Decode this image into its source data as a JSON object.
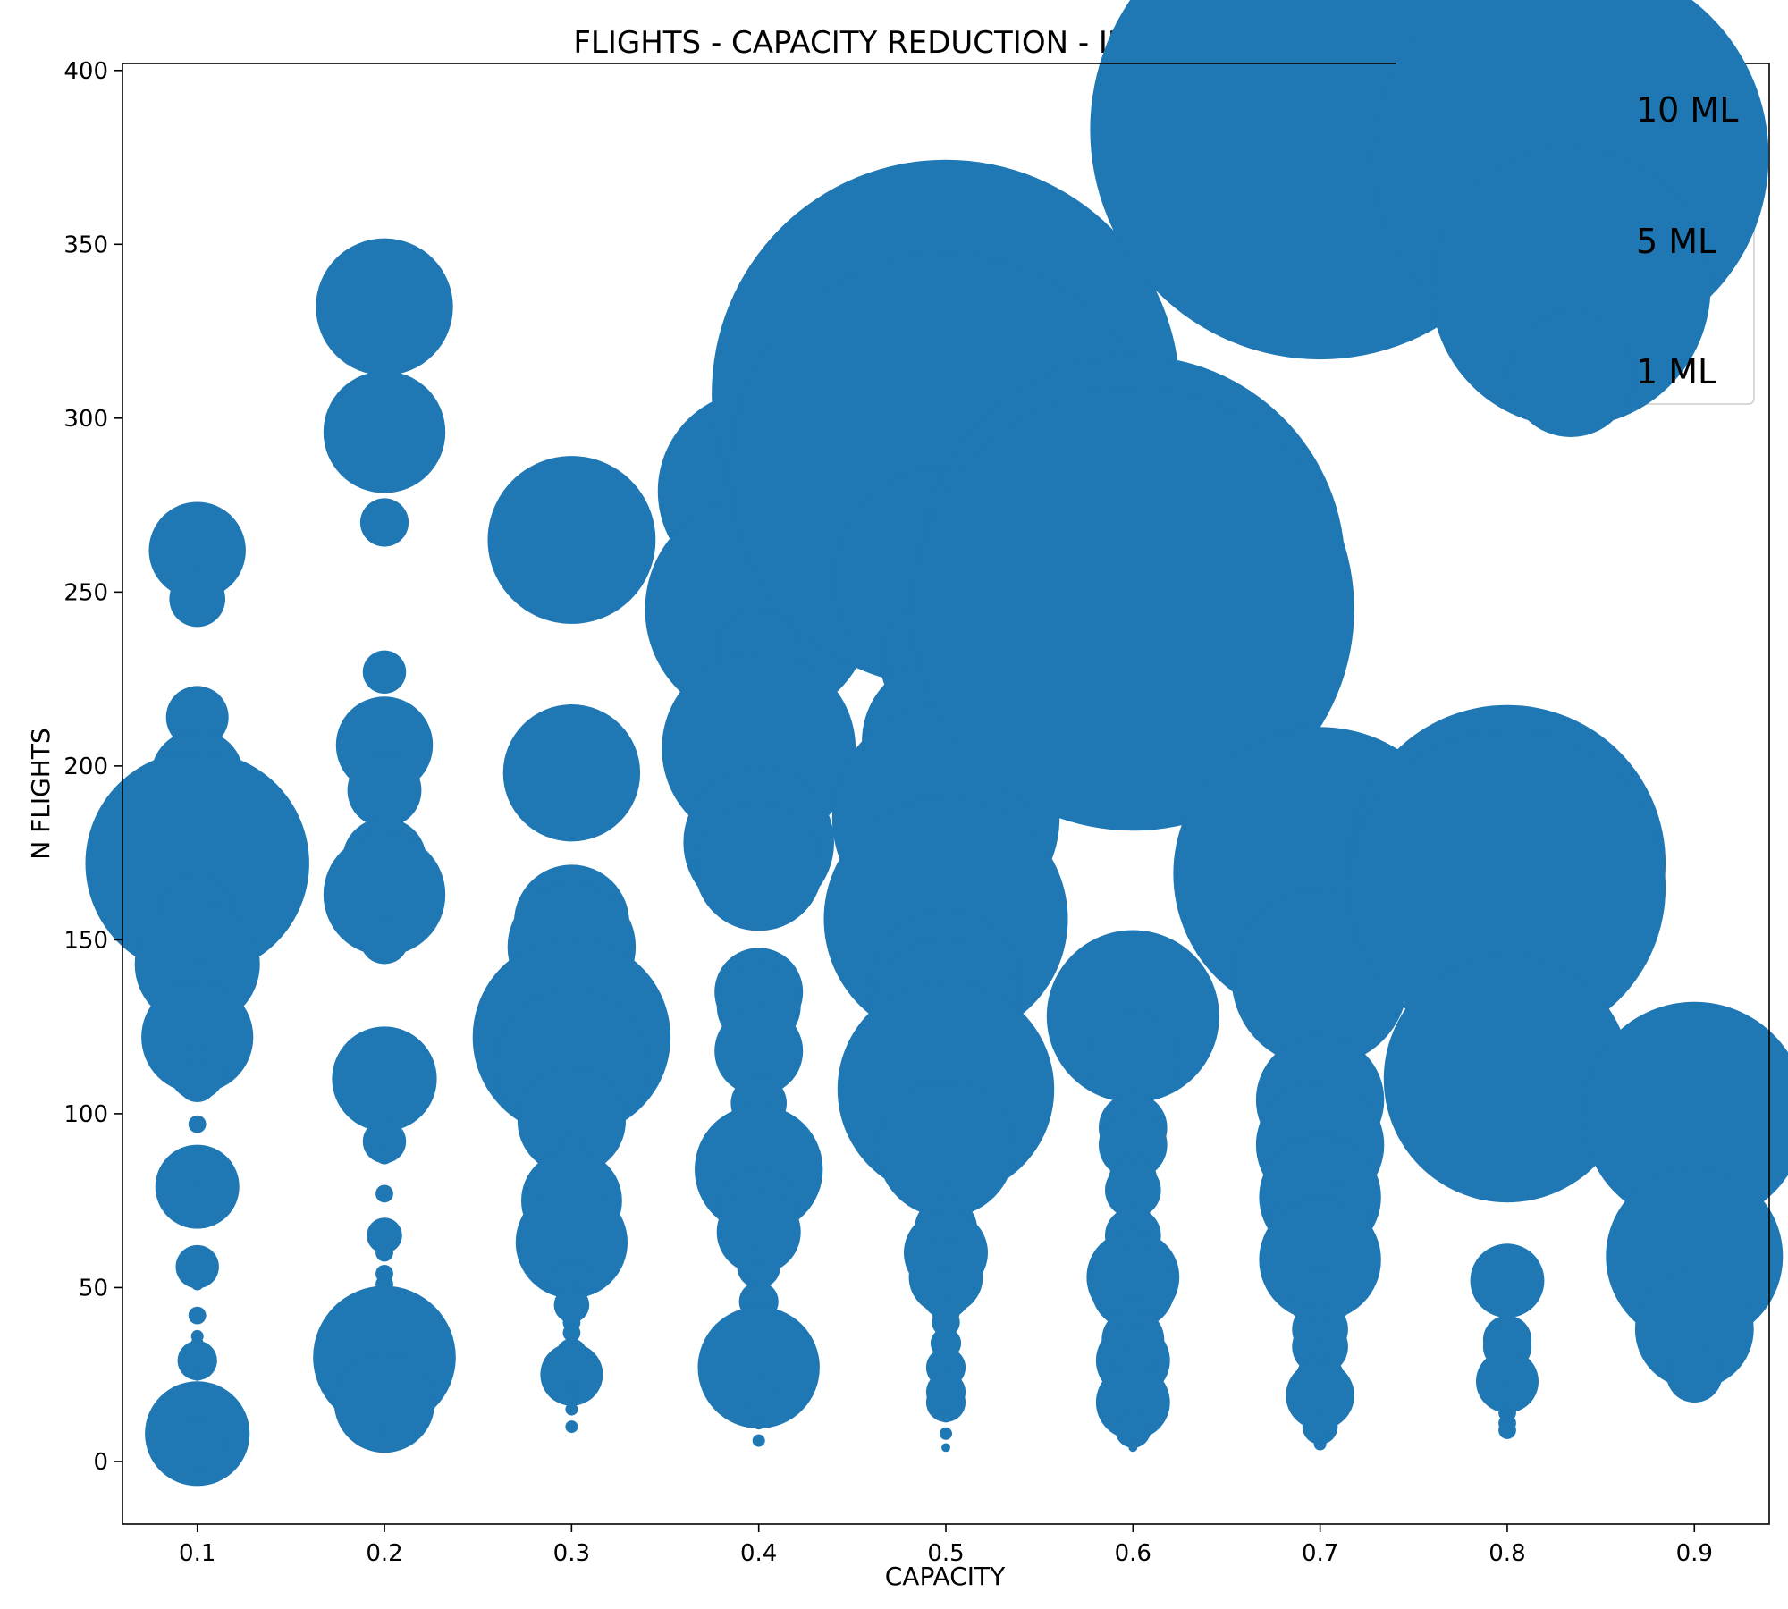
{
  "chart_data": {
    "type": "scatter",
    "title": "FLIGHTS - CAPACITY REDUCTION - INITIAL COSTS",
    "xlabel": "CAPACITY",
    "ylabel": "N FLIGHTS",
    "xlim": [
      0.06,
      0.94
    ],
    "ylim": [
      -18,
      402
    ],
    "xticks": [
      "0.1",
      "0.2",
      "0.3",
      "0.4",
      "0.5",
      "0.6",
      "0.7",
      "0.8",
      "0.9"
    ],
    "yticks": [
      "0",
      "50",
      "100",
      "150",
      "200",
      "250",
      "300",
      "350",
      "400"
    ],
    "size_unit": "ML",
    "color": "#1f77b4",
    "grid": false,
    "legend": {
      "position": "top-right",
      "entries": [
        {
          "label": "10 ML",
          "size": 10
        },
        {
          "label": "5 ML",
          "size": 5
        },
        {
          "label": "1 ML",
          "size": 1
        }
      ]
    },
    "points": [
      {
        "x": 0.1,
        "y": 262,
        "size": 0.6
      },
      {
        "x": 0.1,
        "y": 248,
        "size": 0.2
      },
      {
        "x": 0.1,
        "y": 214,
        "size": 0.25
      },
      {
        "x": 0.1,
        "y": 202,
        "size": 0.15
      },
      {
        "x": 0.1,
        "y": 197,
        "size": 0.55
      },
      {
        "x": 0.1,
        "y": 193,
        "size": 0.15
      },
      {
        "x": 0.1,
        "y": 189,
        "size": 0.2
      },
      {
        "x": 0.1,
        "y": 172,
        "size": 3.2
      },
      {
        "x": 0.1,
        "y": 158,
        "size": 0.35
      },
      {
        "x": 0.1,
        "y": 143,
        "size": 1.0
      },
      {
        "x": 0.1,
        "y": 138,
        "size": 0.1
      },
      {
        "x": 0.1,
        "y": 129,
        "size": 0.15
      },
      {
        "x": 0.1,
        "y": 122,
        "size": 0.8
      },
      {
        "x": 0.1,
        "y": 112,
        "size": 0.2
      },
      {
        "x": 0.1,
        "y": 109,
        "size": 0.1
      },
      {
        "x": 0.1,
        "y": 97,
        "size": 0.02
      },
      {
        "x": 0.1,
        "y": 87,
        "size": 0.02
      },
      {
        "x": 0.1,
        "y": 83,
        "size": 0.03
      },
      {
        "x": 0.1,
        "y": 79,
        "size": 0.45
      },
      {
        "x": 0.1,
        "y": 75,
        "size": 0.1
      },
      {
        "x": 0.1,
        "y": 59,
        "size": 0.02
      },
      {
        "x": 0.1,
        "y": 56,
        "size": 0.12
      },
      {
        "x": 0.1,
        "y": 51,
        "size": 0.01
      },
      {
        "x": 0.1,
        "y": 42,
        "size": 0.02
      },
      {
        "x": 0.1,
        "y": 36,
        "size": 0.01
      },
      {
        "x": 0.1,
        "y": 34,
        "size": 0.01
      },
      {
        "x": 0.1,
        "y": 29,
        "size": 0.1
      },
      {
        "x": 0.1,
        "y": 25,
        "size": 0.01
      },
      {
        "x": 0.1,
        "y": 18,
        "size": 0.01
      },
      {
        "x": 0.1,
        "y": 13,
        "size": 0.08
      },
      {
        "x": 0.1,
        "y": 8,
        "size": 0.7
      },
      {
        "x": 0.1,
        "y": 5,
        "size": 0.2
      },
      {
        "x": 0.2,
        "y": 332,
        "size": 1.2
      },
      {
        "x": 0.2,
        "y": 296,
        "size": 0.95
      },
      {
        "x": 0.2,
        "y": 270,
        "size": 0.15
      },
      {
        "x": 0.2,
        "y": 227,
        "size": 0.12
      },
      {
        "x": 0.2,
        "y": 206,
        "size": 0.6
      },
      {
        "x": 0.2,
        "y": 193,
        "size": 0.35
      },
      {
        "x": 0.2,
        "y": 173,
        "size": 0.45
      },
      {
        "x": 0.2,
        "y": 163,
        "size": 0.95
      },
      {
        "x": 0.2,
        "y": 150,
        "size": 0.15
      },
      {
        "x": 0.2,
        "y": 110,
        "size": 0.7
      },
      {
        "x": 0.2,
        "y": 104,
        "size": 0.02
      },
      {
        "x": 0.2,
        "y": 92,
        "size": 0.12
      },
      {
        "x": 0.2,
        "y": 88,
        "size": 0.02
      },
      {
        "x": 0.2,
        "y": 77,
        "size": 0.02
      },
      {
        "x": 0.2,
        "y": 67,
        "size": 0.02
      },
      {
        "x": 0.2,
        "y": 65,
        "size": 0.08
      },
      {
        "x": 0.2,
        "y": 60,
        "size": 0.02
      },
      {
        "x": 0.2,
        "y": 54,
        "size": 0.02
      },
      {
        "x": 0.2,
        "y": 51,
        "size": 0.02
      },
      {
        "x": 0.2,
        "y": 42,
        "size": 0.08
      },
      {
        "x": 0.2,
        "y": 30,
        "size": 1.3
      },
      {
        "x": 0.2,
        "y": 17,
        "size": 0.65
      },
      {
        "x": 0.2,
        "y": 9,
        "size": 0.005
      },
      {
        "x": 0.3,
        "y": 265,
        "size": 1.8
      },
      {
        "x": 0.3,
        "y": 198,
        "size": 1.2
      },
      {
        "x": 0.3,
        "y": 155,
        "size": 0.85
      },
      {
        "x": 0.3,
        "y": 148,
        "size": 1.05
      },
      {
        "x": 0.3,
        "y": 131,
        "size": 0.5
      },
      {
        "x": 0.3,
        "y": 122,
        "size": 2.5
      },
      {
        "x": 0.3,
        "y": 114,
        "size": 1.5
      },
      {
        "x": 0.3,
        "y": 98,
        "size": 0.75
      },
      {
        "x": 0.3,
        "y": 91,
        "size": 0.03
      },
      {
        "x": 0.3,
        "y": 83,
        "size": 0.06
      },
      {
        "x": 0.3,
        "y": 75,
        "size": 0.65
      },
      {
        "x": 0.3,
        "y": 63,
        "size": 0.8
      },
      {
        "x": 0.3,
        "y": 52,
        "size": 0.12
      },
      {
        "x": 0.3,
        "y": 47,
        "size": 0.06
      },
      {
        "x": 0.3,
        "y": 45,
        "size": 0.08
      },
      {
        "x": 0.3,
        "y": 40,
        "size": 0.02
      },
      {
        "x": 0.3,
        "y": 37,
        "size": 0.02
      },
      {
        "x": 0.3,
        "y": 31,
        "size": 0.06
      },
      {
        "x": 0.3,
        "y": 29,
        "size": 0.04
      },
      {
        "x": 0.3,
        "y": 25,
        "size": 0.25
      },
      {
        "x": 0.3,
        "y": 21,
        "size": 0.01
      },
      {
        "x": 0.3,
        "y": 18,
        "size": 0.01
      },
      {
        "x": 0.3,
        "y": 15,
        "size": 0.01
      },
      {
        "x": 0.3,
        "y": 10,
        "size": 0.01
      },
      {
        "x": 0.4,
        "y": 279,
        "size": 2.6
      },
      {
        "x": 0.4,
        "y": 270,
        "size": 0.5
      },
      {
        "x": 0.4,
        "y": 255,
        "size": 0.5
      },
      {
        "x": 0.4,
        "y": 245,
        "size": 3.3
      },
      {
        "x": 0.4,
        "y": 233,
        "size": 0.45
      },
      {
        "x": 0.4,
        "y": 205,
        "size": 2.4
      },
      {
        "x": 0.4,
        "y": 178,
        "size": 1.45
      },
      {
        "x": 0.4,
        "y": 171,
        "size": 1.05
      },
      {
        "x": 0.4,
        "y": 135,
        "size": 0.5
      },
      {
        "x": 0.4,
        "y": 131,
        "size": 0.45
      },
      {
        "x": 0.4,
        "y": 118,
        "size": 0.5
      },
      {
        "x": 0.4,
        "y": 103,
        "size": 0.2
      },
      {
        "x": 0.4,
        "y": 84,
        "size": 1.05
      },
      {
        "x": 0.4,
        "y": 73,
        "size": 0.4
      },
      {
        "x": 0.4,
        "y": 66,
        "size": 0.45
      },
      {
        "x": 0.4,
        "y": 56,
        "size": 0.12
      },
      {
        "x": 0.4,
        "y": 53,
        "size": 0.05
      },
      {
        "x": 0.4,
        "y": 46,
        "size": 0.1
      },
      {
        "x": 0.4,
        "y": 43,
        "size": 0.04
      },
      {
        "x": 0.4,
        "y": 37,
        "size": 0.2
      },
      {
        "x": 0.4,
        "y": 33,
        "size": 0.04
      },
      {
        "x": 0.4,
        "y": 27,
        "size": 0.95
      },
      {
        "x": 0.4,
        "y": 20,
        "size": 0.08
      },
      {
        "x": 0.4,
        "y": 16,
        "size": 0.02
      },
      {
        "x": 0.4,
        "y": 11,
        "size": 0.01
      },
      {
        "x": 0.4,
        "y": 6,
        "size": 0.01
      },
      {
        "x": 0.5,
        "y": 307,
        "size": 14.0
      },
      {
        "x": 0.5,
        "y": 285,
        "size": 12.0
      },
      {
        "x": 0.5,
        "y": 254,
        "size": 3.2
      },
      {
        "x": 0.5,
        "y": 230,
        "size": 1.1
      },
      {
        "x": 0.5,
        "y": 221,
        "size": 0.9
      },
      {
        "x": 0.5,
        "y": 207,
        "size": 1.8
      },
      {
        "x": 0.5,
        "y": 185,
        "size": 3.3
      },
      {
        "x": 0.5,
        "y": 156,
        "size": 3.8
      },
      {
        "x": 0.5,
        "y": 137,
        "size": 1.45
      },
      {
        "x": 0.5,
        "y": 129,
        "size": 1.45
      },
      {
        "x": 0.5,
        "y": 107,
        "size": 3.0
      },
      {
        "x": 0.5,
        "y": 90,
        "size": 1.2
      },
      {
        "x": 0.5,
        "y": 82,
        "size": 0.08
      },
      {
        "x": 0.5,
        "y": 73,
        "size": 0.12
      },
      {
        "x": 0.5,
        "y": 67,
        "size": 0.25
      },
      {
        "x": 0.5,
        "y": 60,
        "size": 0.45
      },
      {
        "x": 0.5,
        "y": 53,
        "size": 0.35
      },
      {
        "x": 0.5,
        "y": 48,
        "size": 0.15
      },
      {
        "x": 0.5,
        "y": 43,
        "size": 0.05
      },
      {
        "x": 0.5,
        "y": 40,
        "size": 0.05
      },
      {
        "x": 0.5,
        "y": 34,
        "size": 0.06
      },
      {
        "x": 0.5,
        "y": 27,
        "size": 0.1
      },
      {
        "x": 0.5,
        "y": 20,
        "size": 0.1
      },
      {
        "x": 0.5,
        "y": 17,
        "size": 0.1
      },
      {
        "x": 0.5,
        "y": 13,
        "size": 0.01
      },
      {
        "x": 0.5,
        "y": 8,
        "size": 0.01
      },
      {
        "x": 0.5,
        "y": 4,
        "size": 0.005
      },
      {
        "x": 0.6,
        "y": 257,
        "size": 11.5
      },
      {
        "x": 0.6,
        "y": 245,
        "size": 12.5
      },
      {
        "x": 0.6,
        "y": 128,
        "size": 1.9
      },
      {
        "x": 0.6,
        "y": 116,
        "size": 0.55
      },
      {
        "x": 0.6,
        "y": 96,
        "size": 0.3
      },
      {
        "x": 0.6,
        "y": 91,
        "size": 0.3
      },
      {
        "x": 0.6,
        "y": 81,
        "size": 0.15
      },
      {
        "x": 0.6,
        "y": 78,
        "size": 0.2
      },
      {
        "x": 0.6,
        "y": 65,
        "size": 0.2
      },
      {
        "x": 0.6,
        "y": 61,
        "size": 0.12
      },
      {
        "x": 0.6,
        "y": 53,
        "size": 0.55
      },
      {
        "x": 0.6,
        "y": 50,
        "size": 0.45
      },
      {
        "x": 0.6,
        "y": 41,
        "size": 0.12
      },
      {
        "x": 0.6,
        "y": 35,
        "size": 0.25
      },
      {
        "x": 0.6,
        "y": 29,
        "size": 0.35
      },
      {
        "x": 0.6,
        "y": 27,
        "size": 0.12
      },
      {
        "x": 0.6,
        "y": 17,
        "size": 0.35
      },
      {
        "x": 0.6,
        "y": 9,
        "size": 0.08
      },
      {
        "x": 0.6,
        "y": 4,
        "size": 0.005
      },
      {
        "x": 0.7,
        "y": 383,
        "size": 13.5
      },
      {
        "x": 0.7,
        "y": 169,
        "size": 5.5
      },
      {
        "x": 0.7,
        "y": 139,
        "size": 2.0
      },
      {
        "x": 0.7,
        "y": 104,
        "size": 1.05
      },
      {
        "x": 0.7,
        "y": 91,
        "size": 1.05
      },
      {
        "x": 0.7,
        "y": 82,
        "size": 0.5
      },
      {
        "x": 0.7,
        "y": 76,
        "size": 0.95
      },
      {
        "x": 0.7,
        "y": 66,
        "size": 0.7
      },
      {
        "x": 0.7,
        "y": 58,
        "size": 0.95
      },
      {
        "x": 0.7,
        "y": 47,
        "size": 0.25
      },
      {
        "x": 0.7,
        "y": 44,
        "size": 0.08
      },
      {
        "x": 0.7,
        "y": 38,
        "size": 0.2
      },
      {
        "x": 0.7,
        "y": 33,
        "size": 0.2
      },
      {
        "x": 0.7,
        "y": 29,
        "size": 0.08
      },
      {
        "x": 0.7,
        "y": 24,
        "size": 0.15
      },
      {
        "x": 0.7,
        "y": 19,
        "size": 0.3
      },
      {
        "x": 0.7,
        "y": 10,
        "size": 0.08
      },
      {
        "x": 0.7,
        "y": 7,
        "size": 0.01
      },
      {
        "x": 0.7,
        "y": 5,
        "size": 0.01
      },
      {
        "x": 0.8,
        "y": 172,
        "size": 6.4
      },
      {
        "x": 0.8,
        "y": 165,
        "size": 6.4
      },
      {
        "x": 0.8,
        "y": 110,
        "size": 3.9
      },
      {
        "x": 0.8,
        "y": 52,
        "size": 0.35
      },
      {
        "x": 0.8,
        "y": 35,
        "size": 0.15
      },
      {
        "x": 0.8,
        "y": 33,
        "size": 0.15
      },
      {
        "x": 0.8,
        "y": 23,
        "size": 0.25
      },
      {
        "x": 0.8,
        "y": 20,
        "size": 0.03
      },
      {
        "x": 0.8,
        "y": 14,
        "size": 0.02
      },
      {
        "x": 0.8,
        "y": 11,
        "size": 0.02
      },
      {
        "x": 0.8,
        "y": 9,
        "size": 0.02
      },
      {
        "x": 0.9,
        "y": 100,
        "size": 3.2
      },
      {
        "x": 0.9,
        "y": 59,
        "size": 2.0
      },
      {
        "x": 0.9,
        "y": 38,
        "size": 0.9
      },
      {
        "x": 0.9,
        "y": 25,
        "size": 0.2
      }
    ]
  }
}
